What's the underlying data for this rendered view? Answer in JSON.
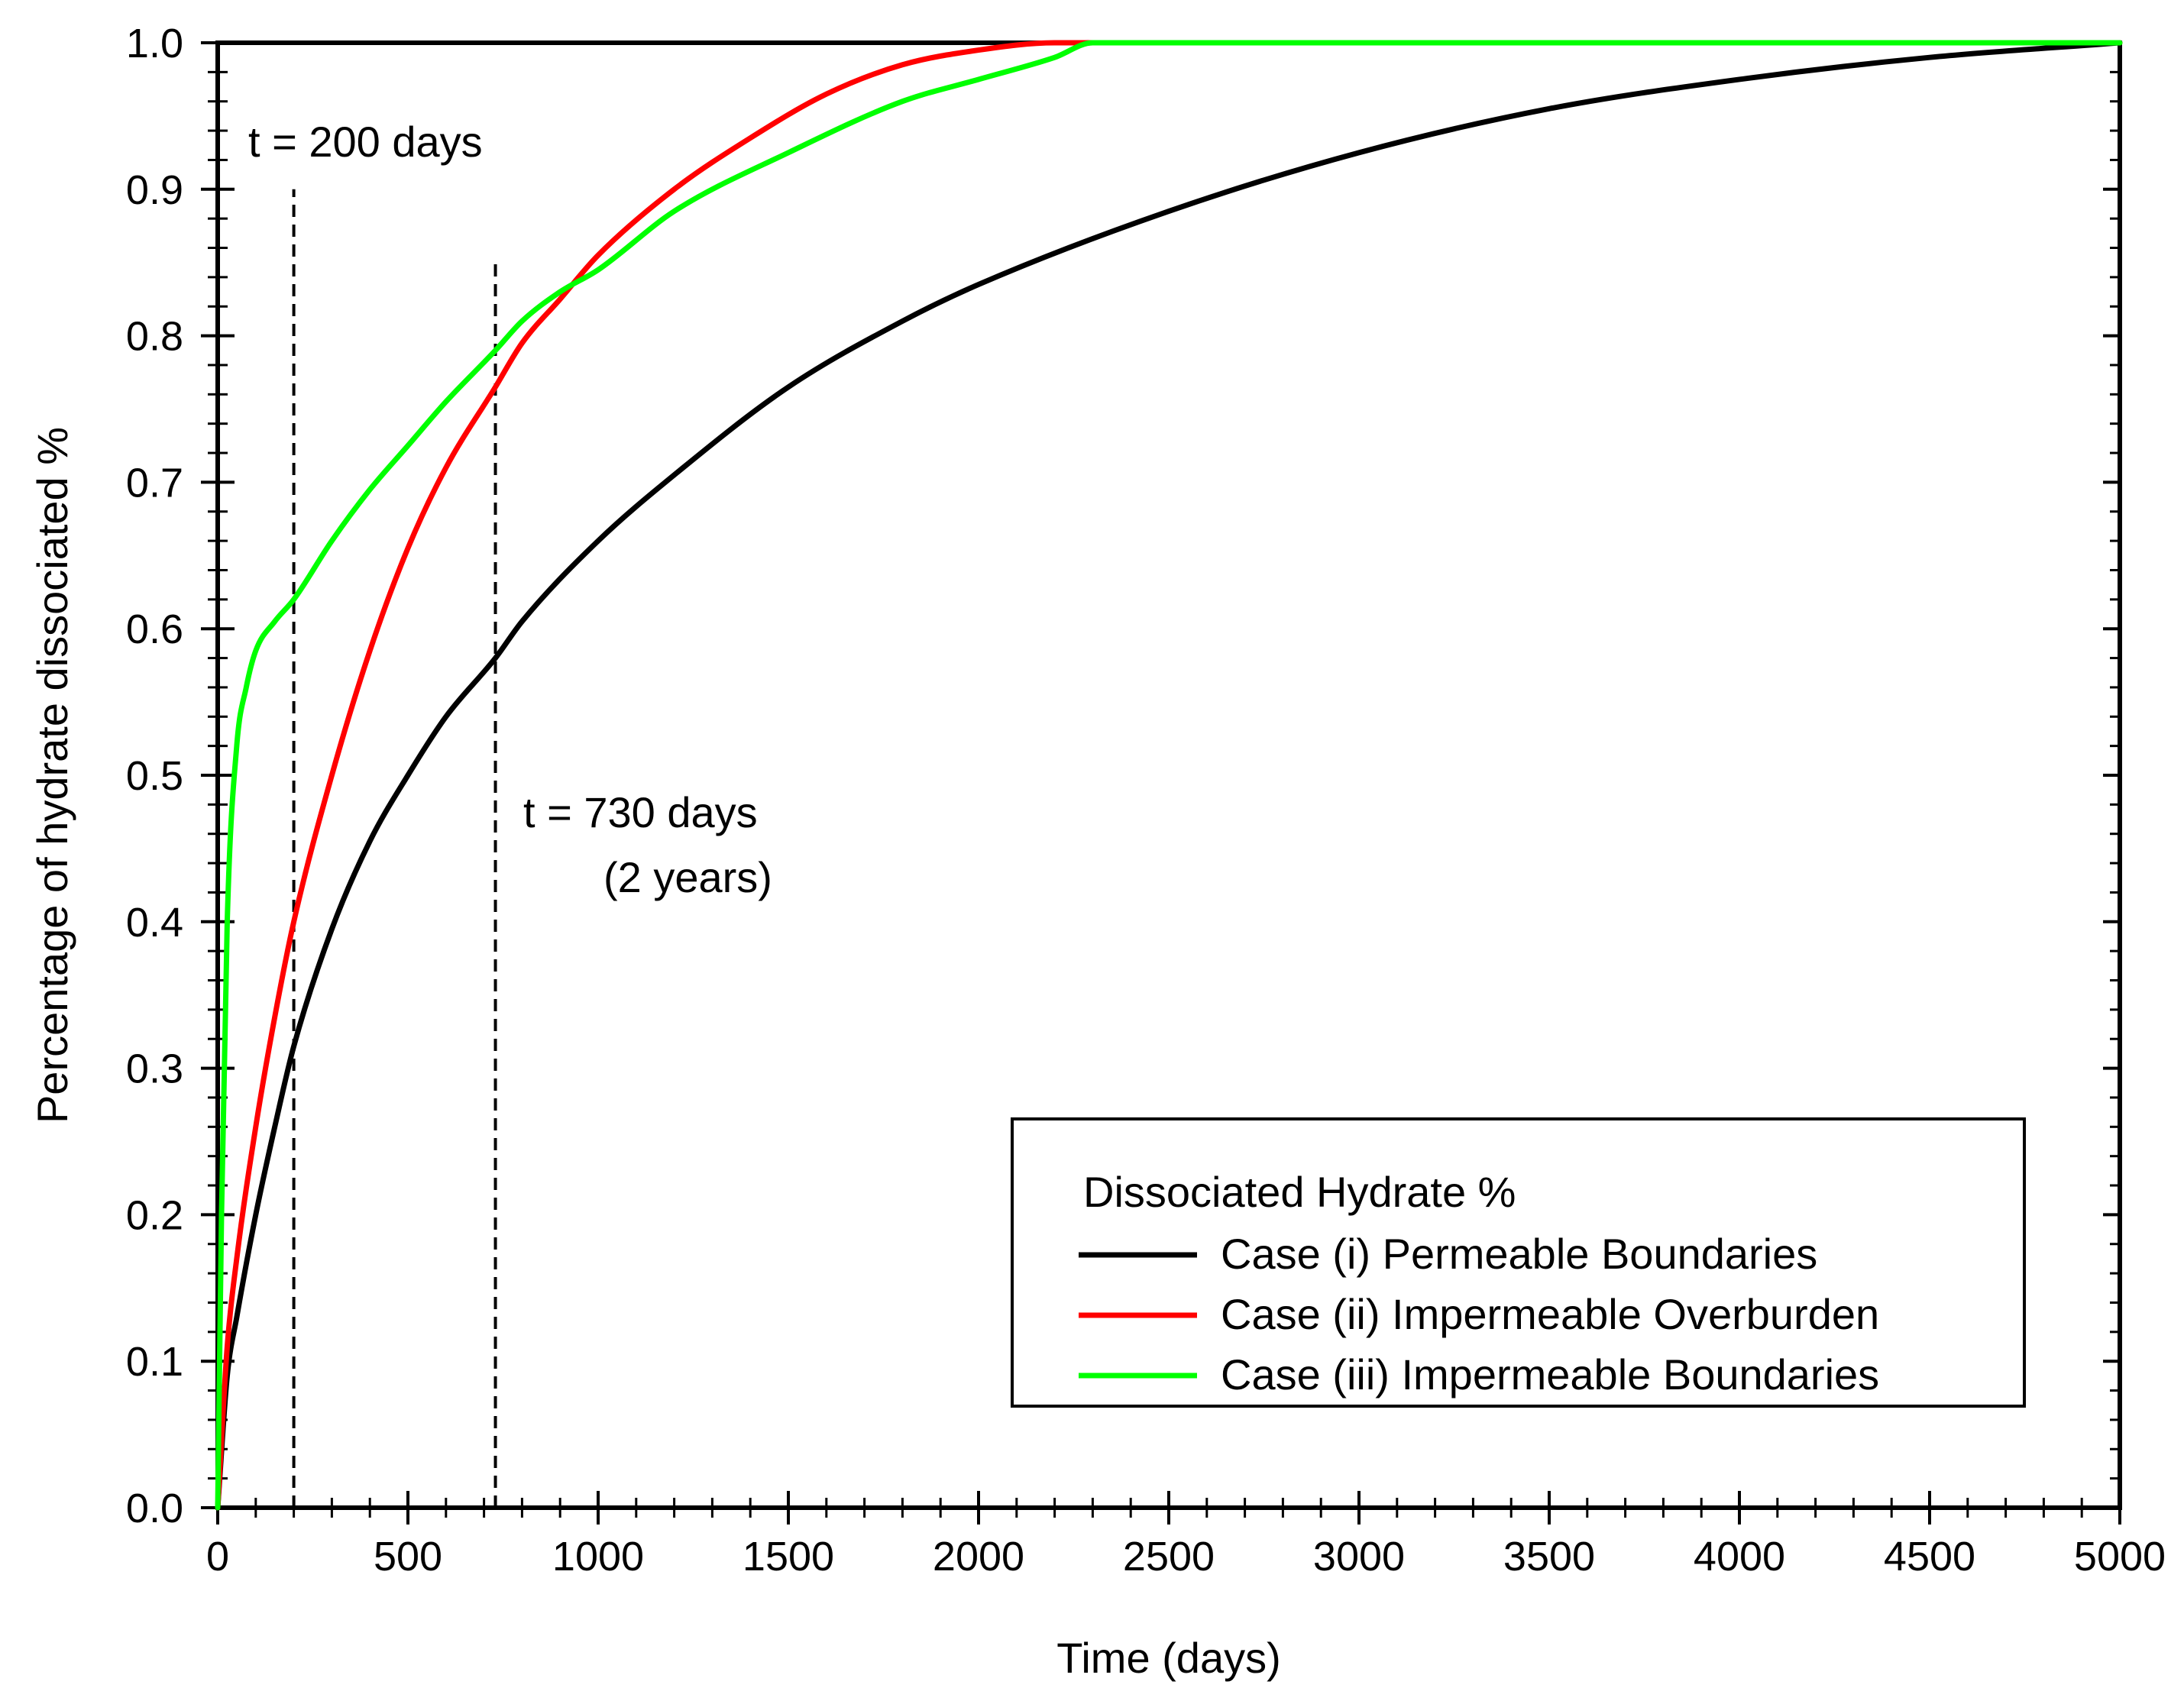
{
  "chart_data": {
    "type": "line",
    "title": "",
    "xlabel": "Time (days)",
    "ylabel": "Percentage of hydrate dissociated %",
    "xlim": [
      0,
      5000
    ],
    "ylim": [
      0.0,
      1.0
    ],
    "grid": false,
    "x_ticks": [
      0,
      500,
      1000,
      1500,
      2000,
      2500,
      3000,
      3500,
      4000,
      4500,
      5000
    ],
    "x_tick_labels": [
      "0",
      "500",
      "1000",
      "1500",
      "2000",
      "2500",
      "3000",
      "3500",
      "4000",
      "4500",
      "5000"
    ],
    "y_ticks": [
      0.0,
      0.1,
      0.2,
      0.3,
      0.4,
      0.5,
      0.6,
      0.7,
      0.8,
      0.9,
      1.0
    ],
    "y_tick_labels": [
      "0.0",
      "0.1",
      "0.2",
      "0.3",
      "0.4",
      "0.5",
      "0.6",
      "0.7",
      "0.8",
      "0.9",
      "1.0"
    ],
    "legend": {
      "title": "Dissociated Hydrate %",
      "placement": "bottom-right"
    },
    "series": [
      {
        "name": "Case (i) Permeable Boundaries",
        "color": "#000000",
        "x": [
          0,
          25,
          50,
          100,
          150,
          200,
          300,
          400,
          500,
          600,
          730,
          800,
          1000,
          1200,
          1500,
          1800,
          2000,
          2500,
          3000,
          3500,
          4000,
          4500,
          5000
        ],
        "y": [
          0.0,
          0.09,
          0.13,
          0.2,
          0.26,
          0.315,
          0.395,
          0.455,
          0.5,
          0.54,
          0.58,
          0.605,
          0.66,
          0.705,
          0.765,
          0.81,
          0.835,
          0.885,
          0.925,
          0.955,
          0.975,
          0.99,
          1.0
        ]
      },
      {
        "name": "Case (ii) Impermeable Overburden",
        "color": "#ff0000",
        "x": [
          0,
          25,
          50,
          100,
          150,
          200,
          300,
          400,
          500,
          600,
          730,
          800,
          900,
          1000,
          1200,
          1400,
          1600,
          1800,
          2000,
          2200,
          2500,
          3000,
          4000,
          5000
        ],
        "y": [
          0.0,
          0.11,
          0.17,
          0.26,
          0.335,
          0.4,
          0.5,
          0.585,
          0.655,
          0.71,
          0.765,
          0.795,
          0.825,
          0.855,
          0.9,
          0.935,
          0.965,
          0.985,
          0.995,
          1.0,
          1.0,
          1.0,
          1.0,
          1.0
        ]
      },
      {
        "name": "Case (iii) Impermeable Boundaries",
        "color": "#00ff00",
        "x": [
          0,
          10,
          25,
          50,
          75,
          100,
          150,
          200,
          300,
          400,
          500,
          600,
          730,
          800,
          900,
          1000,
          1200,
          1500,
          1800,
          2000,
          2200,
          2300,
          2500,
          3000,
          4000,
          5000
        ],
        "y": [
          0.0,
          0.2,
          0.4,
          0.52,
          0.56,
          0.585,
          0.605,
          0.62,
          0.66,
          0.695,
          0.725,
          0.755,
          0.79,
          0.81,
          0.83,
          0.845,
          0.885,
          0.925,
          0.96,
          0.975,
          0.99,
          1.0,
          1.0,
          1.0,
          1.0,
          1.0
        ]
      }
    ],
    "annotations": [
      {
        "label": "t = 200 days",
        "x": 200,
        "line_y": [
          0.0,
          0.9
        ]
      },
      {
        "label": "t = 730 days",
        "sublabel": "(2 years)",
        "x": 730,
        "line_y": [
          0.0,
          0.85
        ]
      }
    ]
  }
}
